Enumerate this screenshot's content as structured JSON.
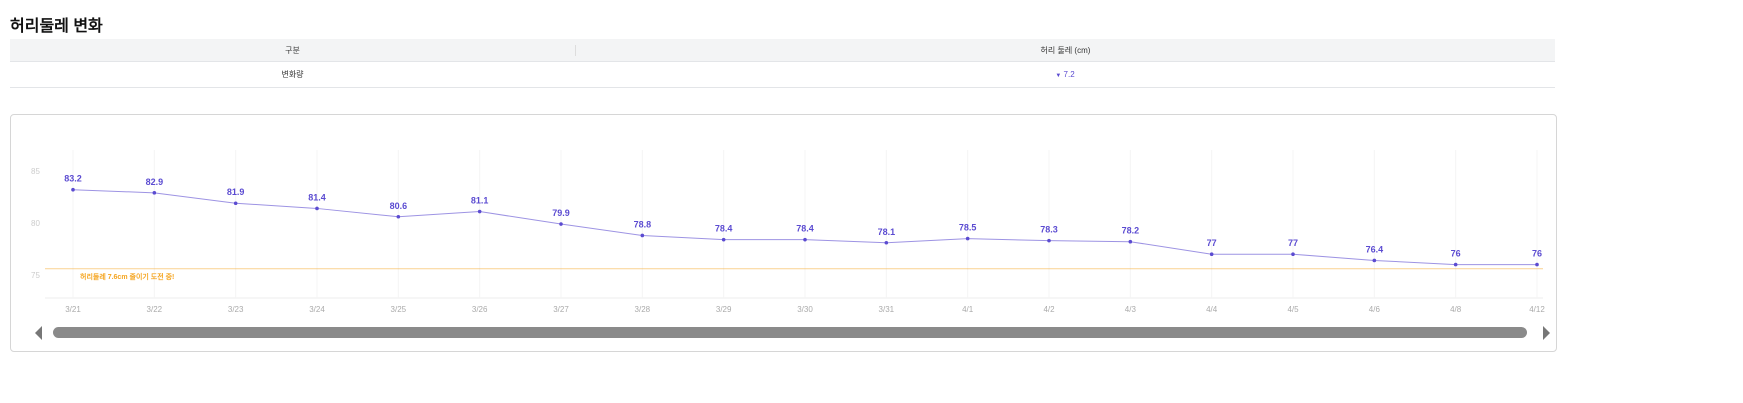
{
  "title": "허리둘레 변화",
  "table": {
    "headers": [
      "구분",
      "허리 둘레 (cm)"
    ],
    "row": {
      "label": "변화량",
      "direction": "▼",
      "value": "7.2"
    }
  },
  "chart_data": {
    "type": "line",
    "x": [
      "3/21",
      "3/22",
      "3/23",
      "3/24",
      "3/25",
      "3/26",
      "3/27",
      "3/28",
      "3/29",
      "3/30",
      "3/31",
      "4/1",
      "4/2",
      "4/3",
      "4/4",
      "4/5",
      "4/6",
      "4/8",
      "4/12"
    ],
    "series": [
      {
        "name": "허리둘레",
        "values": [
          83.2,
          82.9,
          81.9,
          81.4,
          80.6,
          81.1,
          79.9,
          78.8,
          78.4,
          78.4,
          78.1,
          78.5,
          78.3,
          78.2,
          77,
          77,
          76.4,
          76,
          76
        ],
        "color": "#5b4bd1"
      }
    ],
    "yticks": [
      85,
      80,
      75
    ],
    "ylim": [
      72.7,
      87
    ],
    "target": {
      "value": 75.6,
      "label": "허리둘레 7.6cm 줄이기 도전 중!",
      "color": "#f5a623"
    }
  }
}
